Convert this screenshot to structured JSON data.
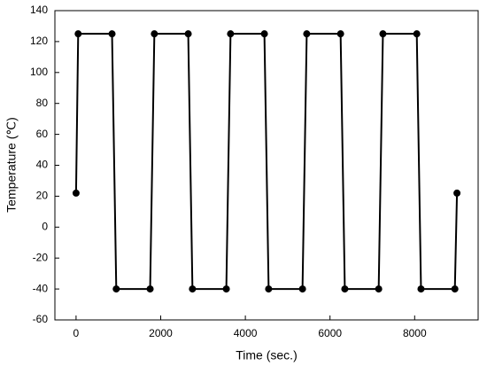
{
  "chart_data": {
    "type": "line",
    "xlabel": "Time (sec.)",
    "ylabel": "Temperature (℃)",
    "x": [
      0,
      50,
      850,
      950,
      1750,
      1850,
      2650,
      2750,
      3550,
      3650,
      4450,
      4550,
      5350,
      5450,
      6250,
      6350,
      7150,
      7250,
      8050,
      8150,
      8950,
      9000
    ],
    "series": [
      {
        "color": "#000000",
        "values": [
          22,
          125,
          125,
          -40,
          -40,
          125,
          125,
          -40,
          -40,
          125,
          125,
          -40,
          -40,
          125,
          125,
          -40,
          -40,
          125,
          125,
          -40,
          -40,
          22
        ]
      }
    ],
    "xlim": [
      -500,
      9500
    ],
    "xticks": [
      0,
      2000,
      4000,
      6000,
      8000
    ],
    "ylim": [
      -60,
      140
    ],
    "yticks": [
      -60,
      -40,
      -20,
      0,
      20,
      40,
      60,
      80,
      100,
      120,
      140
    ],
    "markers": true
  }
}
